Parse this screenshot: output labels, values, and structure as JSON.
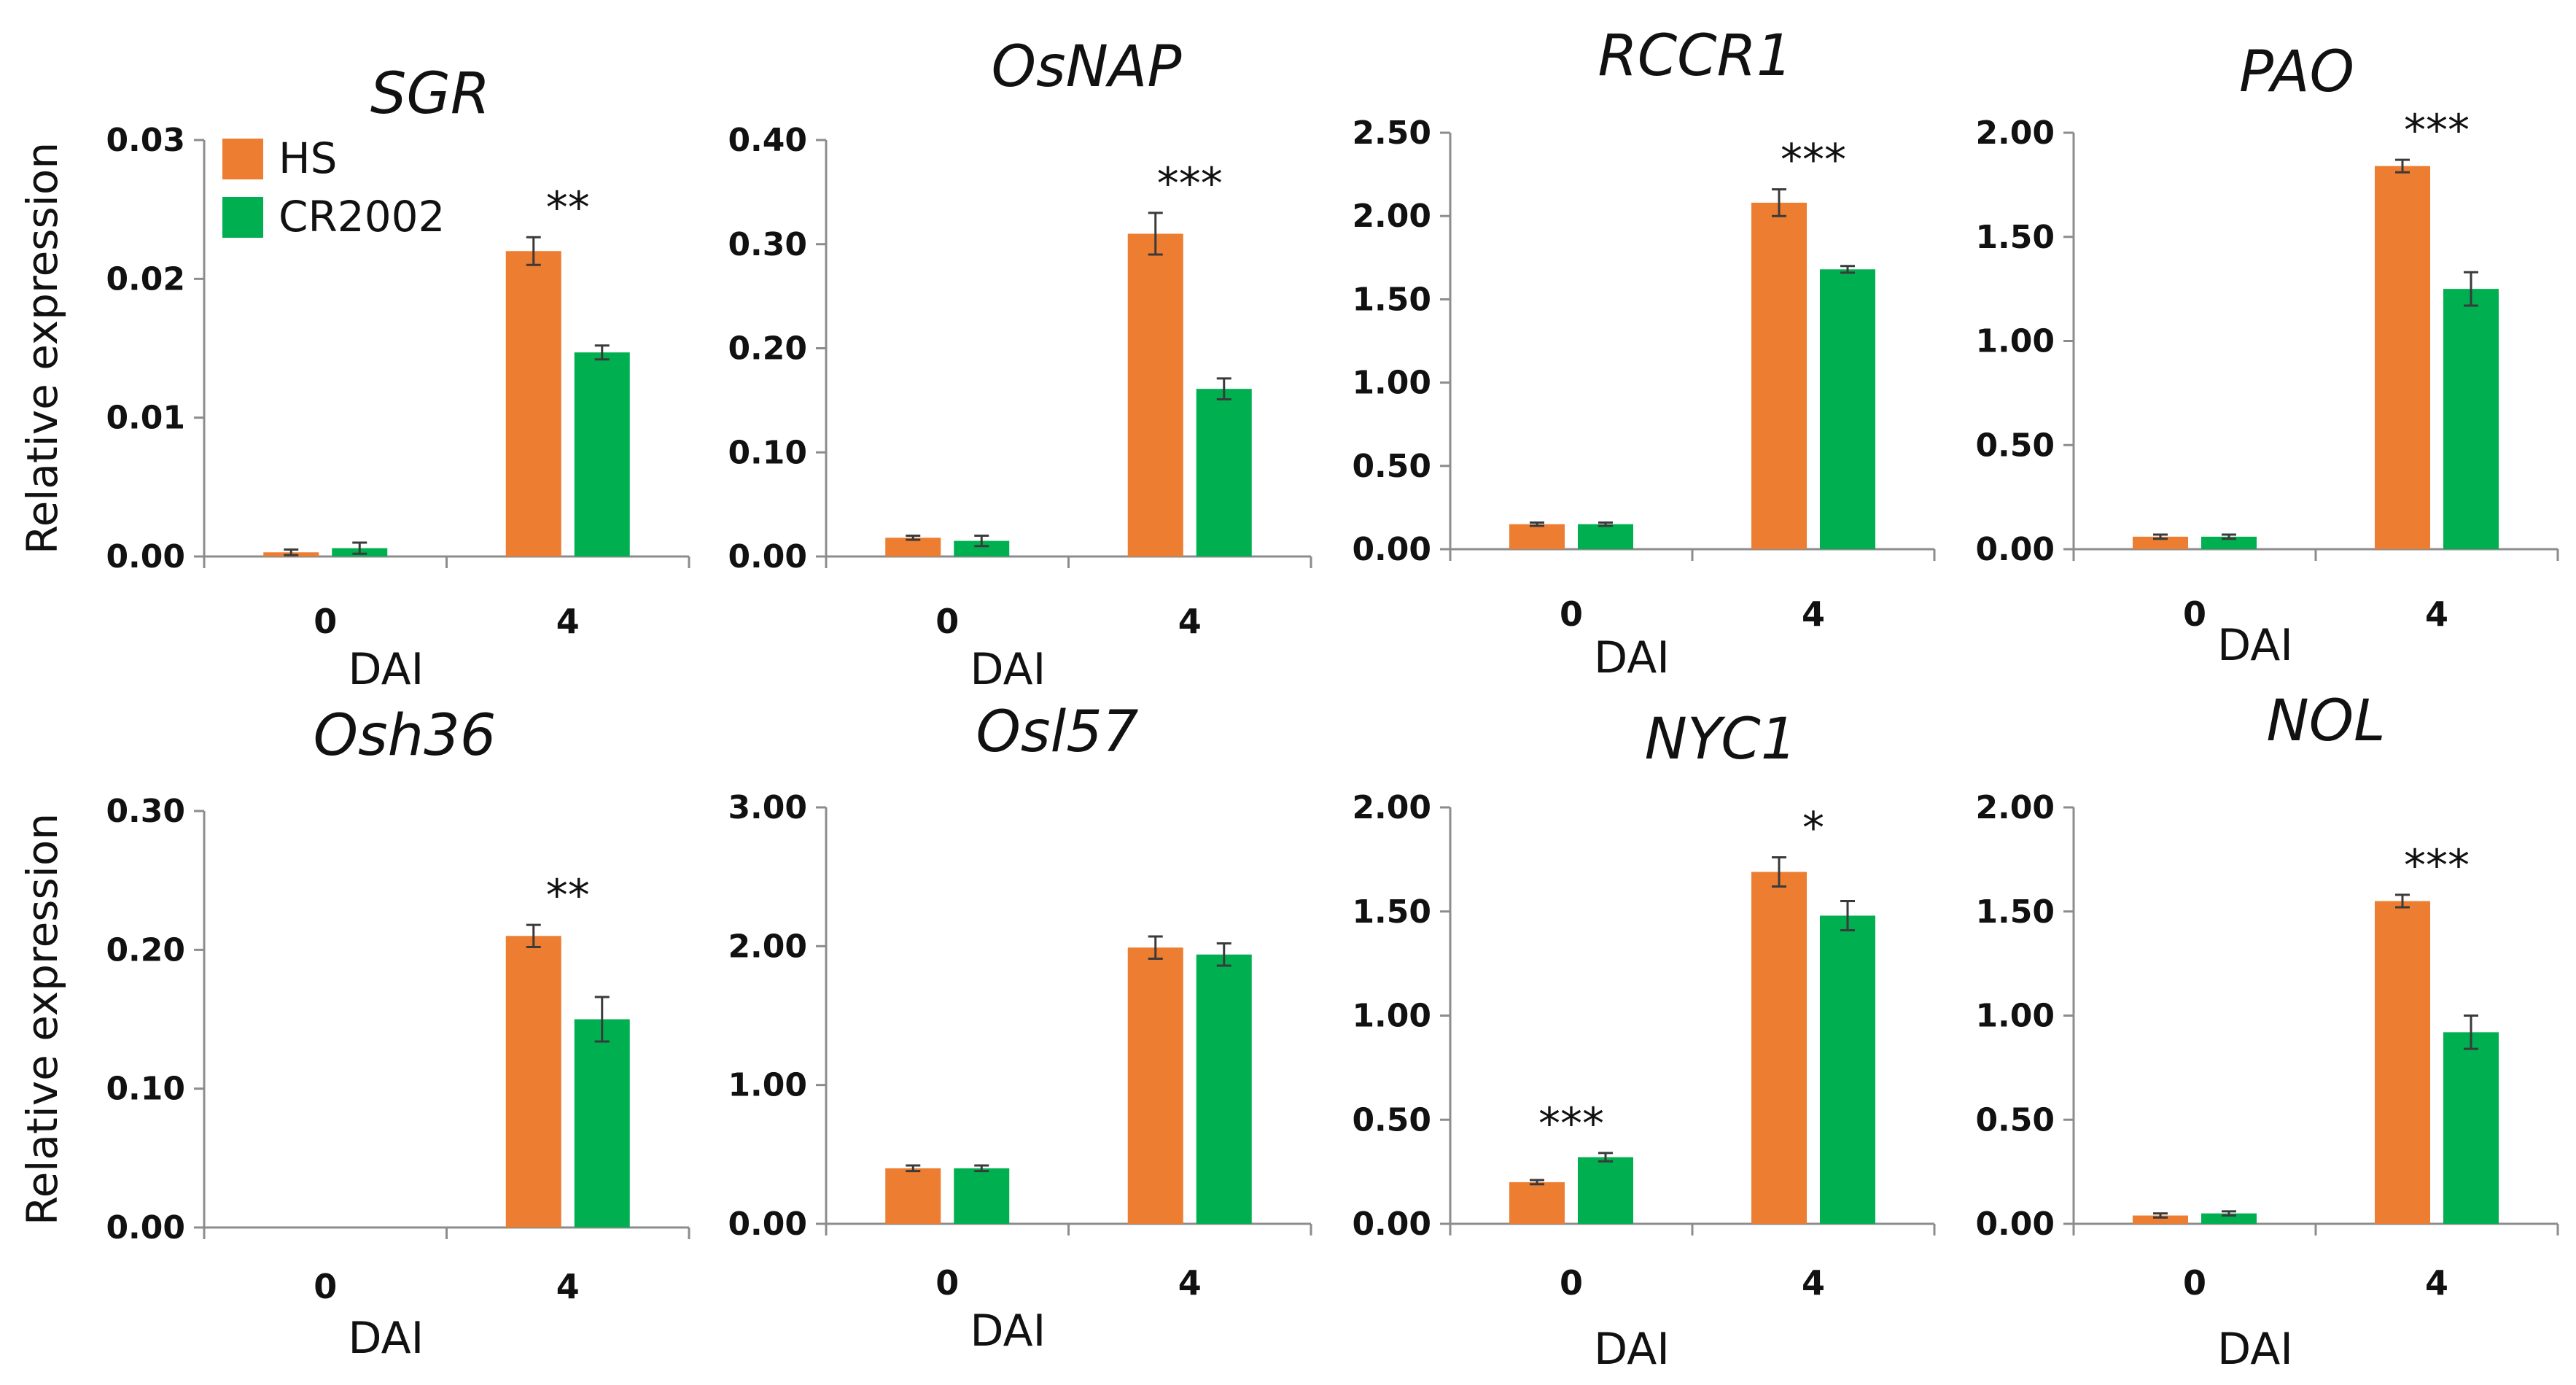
{
  "colors": {
    "HS": "#ed7d31",
    "CR2002": "#00b050",
    "axis": "#8c8c8c",
    "error": "#3a3a3a"
  },
  "legend": {
    "entries": [
      "HS",
      "CR2002"
    ]
  },
  "chart_data": [
    {
      "type": "bar",
      "title": "SGR",
      "categories": [
        "0",
        "4"
      ],
      "xlabel": "DAI",
      "ylabel": "Relative expression",
      "yticks": [
        "0.00",
        "0.01",
        "0.02",
        "0.03"
      ],
      "ylim": [
        0,
        0.03
      ],
      "series": [
        {
          "name": "HS",
          "values": [
            0.0003,
            0.022
          ],
          "errors": [
            0.0002,
            0.001
          ]
        },
        {
          "name": "CR2002",
          "values": [
            0.0006,
            0.0147
          ],
          "errors": [
            0.0004,
            0.0005
          ]
        }
      ],
      "significance": [
        "",
        "**"
      ]
    },
    {
      "type": "bar",
      "title": "OsNAP",
      "categories": [
        "0",
        "4"
      ],
      "xlabel": "DAI",
      "ylabel": "",
      "yticks": [
        "0.00",
        "0.10",
        "0.20",
        "0.30",
        "0.40"
      ],
      "ylim": [
        0,
        0.4
      ],
      "series": [
        {
          "name": "HS",
          "values": [
            0.018,
            0.31
          ],
          "errors": [
            0.002,
            0.02
          ]
        },
        {
          "name": "CR2002",
          "values": [
            0.015,
            0.161
          ],
          "errors": [
            0.005,
            0.01
          ]
        }
      ],
      "significance": [
        "",
        "***"
      ]
    },
    {
      "type": "bar",
      "title": "RCCR1",
      "categories": [
        "0",
        "4"
      ],
      "xlabel": "DAI",
      "ylabel": "",
      "yticks": [
        "0.00",
        "0.50",
        "1.00",
        "1.50",
        "2.00",
        "2.50"
      ],
      "ylim": [
        0,
        2.5
      ],
      "series": [
        {
          "name": "HS",
          "values": [
            0.15,
            2.08
          ],
          "errors": [
            0.01,
            0.08
          ]
        },
        {
          "name": "CR2002",
          "values": [
            0.15,
            1.68
          ],
          "errors": [
            0.01,
            0.02
          ]
        }
      ],
      "significance": [
        "",
        "***"
      ]
    },
    {
      "type": "bar",
      "title": "PAO",
      "categories": [
        "0",
        "4"
      ],
      "xlabel": "DAI",
      "ylabel": "",
      "yticks": [
        "0.00",
        "0.50",
        "1.00",
        "1.50",
        "2.00"
      ],
      "ylim": [
        0,
        2.0
      ],
      "series": [
        {
          "name": "HS",
          "values": [
            0.06,
            1.84
          ],
          "errors": [
            0.01,
            0.03
          ]
        },
        {
          "name": "CR2002",
          "values": [
            0.06,
            1.25
          ],
          "errors": [
            0.01,
            0.08
          ]
        }
      ],
      "significance": [
        "",
        "***"
      ]
    },
    {
      "type": "bar",
      "title": "Osh36",
      "categories": [
        "0",
        "4"
      ],
      "xlabel": "DAI",
      "ylabel": "Relative expression",
      "yticks": [
        "0.00",
        "0.10",
        "0.20",
        "0.30"
      ],
      "ylim": [
        0,
        0.3
      ],
      "series": [
        {
          "name": "HS",
          "values": [
            0.0,
            0.21
          ],
          "errors": [
            0.0,
            0.008
          ]
        },
        {
          "name": "CR2002",
          "values": [
            0.0,
            0.15
          ],
          "errors": [
            0.0,
            0.016
          ]
        }
      ],
      "significance": [
        "",
        "**"
      ]
    },
    {
      "type": "bar",
      "title": "Osl57",
      "categories": [
        "0",
        "4"
      ],
      "xlabel": "DAI",
      "ylabel": "",
      "yticks": [
        "0.00",
        "1.00",
        "2.00",
        "3.00"
      ],
      "ylim": [
        0,
        3.0
      ],
      "series": [
        {
          "name": "HS",
          "values": [
            0.4,
            1.99
          ],
          "errors": [
            0.02,
            0.08
          ]
        },
        {
          "name": "CR2002",
          "values": [
            0.4,
            1.94
          ],
          "errors": [
            0.02,
            0.08
          ]
        }
      ],
      "significance": [
        "",
        ""
      ]
    },
    {
      "type": "bar",
      "title": "NYC1",
      "categories": [
        "0",
        "4"
      ],
      "xlabel": "DAI",
      "ylabel": "",
      "yticks": [
        "0.00",
        "0.50",
        "1.00",
        "1.50",
        "2.00"
      ],
      "ylim": [
        0,
        2.0
      ],
      "series": [
        {
          "name": "HS",
          "values": [
            0.2,
            1.69
          ],
          "errors": [
            0.01,
            0.07
          ]
        },
        {
          "name": "CR2002",
          "values": [
            0.32,
            1.48
          ],
          "errors": [
            0.02,
            0.07
          ]
        }
      ],
      "significance": [
        "***",
        "*"
      ]
    },
    {
      "type": "bar",
      "title": "NOL",
      "categories": [
        "0",
        "4"
      ],
      "xlabel": "DAI",
      "ylabel": "",
      "yticks": [
        "0.00",
        "0.50",
        "1.00",
        "1.50",
        "2.00"
      ],
      "ylim": [
        0,
        2.0
      ],
      "series": [
        {
          "name": "HS",
          "values": [
            0.04,
            1.55
          ],
          "errors": [
            0.01,
            0.03
          ]
        },
        {
          "name": "CR2002",
          "values": [
            0.05,
            0.92
          ],
          "errors": [
            0.01,
            0.08
          ]
        }
      ],
      "significance": [
        "",
        "***"
      ]
    }
  ]
}
